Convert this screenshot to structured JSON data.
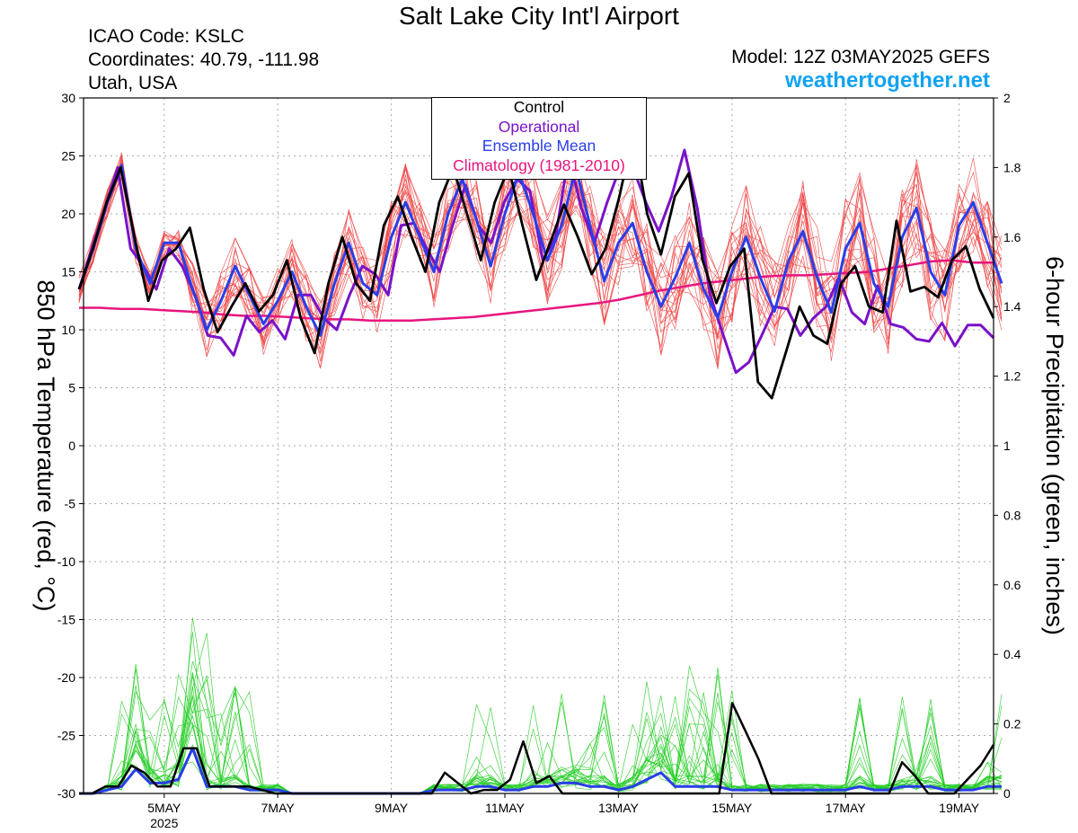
{
  "header": {
    "title": "Salt Lake City Int'l Airport",
    "icao": "ICAO Code: KSLC",
    "coords": "Coordinates: 40.79, -111.98",
    "region": "Utah, USA",
    "model": "Model: 12Z 03MAY2025 GEFS",
    "brand": "weathertogether.net"
  },
  "colors": {
    "temp_member": "#ee4444",
    "precip_member": "#22cc22",
    "control": "#000000",
    "operational": "#7a12c8",
    "ensemble_mean": "#2a3ee8",
    "climatology": "#e8157e",
    "brand": "#11a3f0"
  },
  "legend": {
    "control": "Control",
    "operational": "Operational",
    "ensemble_mean": "Ensemble Mean",
    "climatology": "Climatology (1981-2010)"
  },
  "chart_data": {
    "type": "line",
    "x_unit": "6-hour steps from 12Z 03 May 2025",
    "x_tick_labels": [
      {
        "label": "5MAY",
        "sub": "2025",
        "step": 6
      },
      {
        "label": "7MAY",
        "step": 14
      },
      {
        "label": "9MAY",
        "step": 22
      },
      {
        "label": "11MAY",
        "step": 30
      },
      {
        "label": "13MAY",
        "step": 38
      },
      {
        "label": "15MAY",
        "step": 46
      },
      {
        "label": "17MAY",
        "step": 54
      },
      {
        "label": "19MAY",
        "step": 62
      }
    ],
    "ylabel_left": "850 hPa Temperature (red, °C)",
    "ylabel_right": "6-hour Precipitation (green, inches)",
    "ylim_left": [
      -30,
      30
    ],
    "ylim_right": [
      0,
      2
    ],
    "yticks_left": [
      30,
      25,
      20,
      15,
      10,
      5,
      0,
      -5,
      -10,
      -15,
      -20,
      -25,
      -30
    ],
    "yticks_right": [
      "2",
      "1.8",
      "1.6",
      "1.4",
      "1.2",
      "1",
      "0.8",
      "0.6",
      "0.4",
      "0.2",
      "0"
    ],
    "grid": true,
    "legend_position": "top-center",
    "series": {
      "control_temp": [
        13.5,
        17,
        21,
        24,
        18,
        12.5,
        16,
        17,
        18.8,
        13.5,
        9.8,
        12,
        14,
        11.6,
        13,
        16,
        11,
        8,
        14,
        18,
        14,
        12.5,
        19,
        21.5,
        18,
        15,
        21,
        24,
        20,
        16,
        21,
        24,
        19,
        14.3,
        17.5,
        20.8,
        18,
        14.8,
        17,
        21.5,
        27,
        20,
        16.5,
        21.5,
        23.5,
        16,
        12.3,
        15.5,
        17,
        5.5,
        4.1,
        8,
        12,
        9.5,
        8.8,
        14,
        15.5,
        12,
        11.5,
        19.4,
        13.3,
        13.7,
        12.8,
        16,
        17.2,
        13.5,
        11
      ],
      "operational_temp": [
        13.5,
        17,
        20.5,
        24,
        17,
        15.5,
        13.5,
        17,
        15.5,
        13,
        9.5,
        9.3,
        7.8,
        11.2,
        9.8,
        10.8,
        9.2,
        13,
        13,
        11,
        10,
        13,
        15.5,
        14.8,
        13,
        19,
        19.2,
        17,
        15,
        19,
        22.5,
        19,
        17.5,
        21,
        23,
        22,
        16,
        18,
        25,
        20.5,
        17.5,
        21,
        24,
        24,
        21,
        18.5,
        21.5,
        25.5,
        20.5,
        13,
        9.6,
        6.3,
        7.2,
        9.5,
        12,
        11.8,
        9.5,
        11,
        12,
        14.5,
        11.5,
        10.5,
        13.8,
        10.5,
        10.2,
        9.2,
        9,
        10.6,
        8.6,
        10.4,
        10.4,
        9.3
      ],
      "mean_temp": [
        13.5,
        17,
        21,
        24.2,
        17,
        14,
        17.5,
        17.5,
        13.5,
        10,
        12.5,
        15.5,
        13,
        10.5,
        12.5,
        15,
        12,
        9.5,
        14,
        17.5,
        14,
        13,
        18,
        21,
        18,
        15,
        20,
        23,
        19.5,
        15.5,
        20,
        23.5,
        20,
        16,
        19,
        24,
        19,
        14.2,
        17.5,
        19.2,
        15,
        12,
        14.5,
        17.5,
        13.5,
        11,
        15,
        18,
        14.5,
        11.6,
        16,
        18.5,
        14.5,
        11.5,
        17,
        19.2,
        14,
        12,
        18,
        20.5,
        15,
        13,
        19,
        21,
        17.5,
        14
      ],
      "clim_temp": [
        11.9,
        11.9,
        11.8,
        11.8,
        11.7,
        11.6,
        11.5,
        11.3,
        11.2,
        11.2,
        11.1,
        11.0,
        10.9,
        10.9,
        10.8,
        10.8,
        10.8,
        10.9,
        11.0,
        11.1,
        11.3,
        11.5,
        11.7,
        11.9,
        12.1,
        12.3,
        12.6,
        13.0,
        13.4,
        13.7,
        14.0,
        14.2,
        14.4,
        14.6,
        14.7,
        14.7,
        14.8,
        14.9,
        15.0,
        15.3,
        15.6,
        15.9,
        16.0,
        15.8,
        15.8
      ],
      "control_precip": [
        0,
        0,
        0.02,
        0.02,
        0.08,
        0.06,
        0.02,
        0.02,
        0.13,
        0.13,
        0.02,
        0.02,
        0.02,
        0.02,
        0.01,
        0,
        0,
        0,
        0,
        0,
        0,
        0,
        0,
        0,
        0,
        0,
        0,
        0,
        0.06,
        0.03,
        0,
        0.01,
        0.01,
        0.04,
        0.15,
        0.03,
        0.05,
        0,
        0,
        0,
        0,
        0,
        0,
        0,
        0,
        0,
        0,
        0,
        0,
        0,
        0.26,
        0.18,
        0.1,
        0,
        0,
        0,
        0,
        0,
        0,
        0,
        0,
        0,
        0,
        0.09,
        0.05,
        0,
        0,
        0,
        0.04,
        0.08,
        0.14
      ],
      "mean_precip": [
        0,
        0,
        0.01,
        0.02,
        0.07,
        0.03,
        0.03,
        0.04,
        0.13,
        0.02,
        0.02,
        0.02,
        0.01,
        0.01,
        0.01,
        0,
        0,
        0,
        0,
        0,
        0,
        0,
        0,
        0,
        0,
        0.01,
        0.01,
        0.01,
        0.02,
        0.02,
        0.01,
        0.01,
        0.02,
        0.02,
        0.03,
        0.03,
        0.02,
        0.02,
        0.01,
        0.02,
        0.04,
        0.06,
        0.02,
        0.02,
        0.02,
        0.02,
        0.01,
        0.01,
        0.01,
        0.01,
        0.01,
        0.01,
        0.01,
        0.01,
        0.01,
        0.02,
        0.01,
        0.01,
        0.02,
        0.02,
        0.02,
        0.01,
        0.01,
        0.01,
        0.02,
        0.02
      ]
    }
  }
}
